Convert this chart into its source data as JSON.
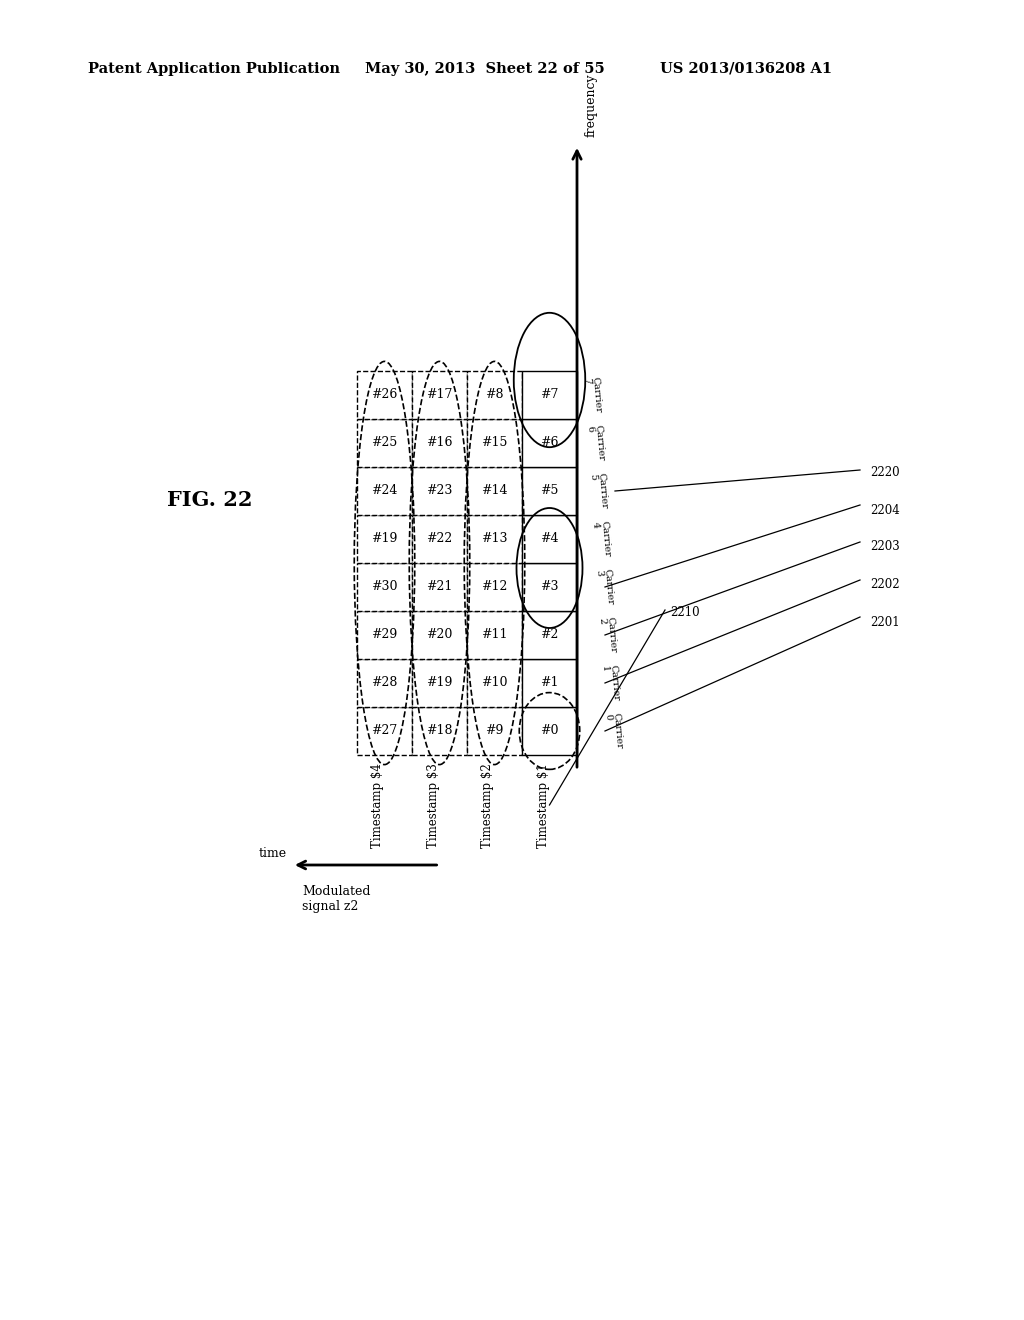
{
  "header_left": "Patent Application Publication",
  "header_mid": "May 30, 2013  Sheet 22 of 55",
  "header_right": "US 2013/0136208 A1",
  "fig_label": "FIG. 22",
  "cell_labels": [
    [
      "#27",
      "#28",
      "#29",
      "#30",
      "#19",
      "#24",
      "#25",
      "#26"
    ],
    [
      "#18",
      "#19",
      "#20",
      "#21",
      "#22",
      "#23",
      "#16",
      "#17"
    ],
    [
      "#9",
      "#10",
      "#11",
      "#12",
      "#13",
      "#14",
      "#15",
      "#8"
    ],
    [
      "#0",
      "#1",
      "#2",
      "#3",
      "#4",
      "#5",
      "#6",
      "#7"
    ]
  ],
  "timestamps": [
    "Timestamp $4",
    "Timestamp $3",
    "Timestamp $2",
    "Timestamp $1"
  ],
  "carrier_labels": [
    "Carrier\n7",
    "Carrier\n6",
    "Carrier\n5",
    "Carrier\n4",
    "Carrier\n3",
    "Carrier\n2",
    "Carrier\n1",
    "Carrier\n0"
  ],
  "ref_labels": [
    "2201",
    "2202",
    "2203",
    "2204",
    "2210",
    "2220"
  ],
  "bg_color": "#ffffff"
}
